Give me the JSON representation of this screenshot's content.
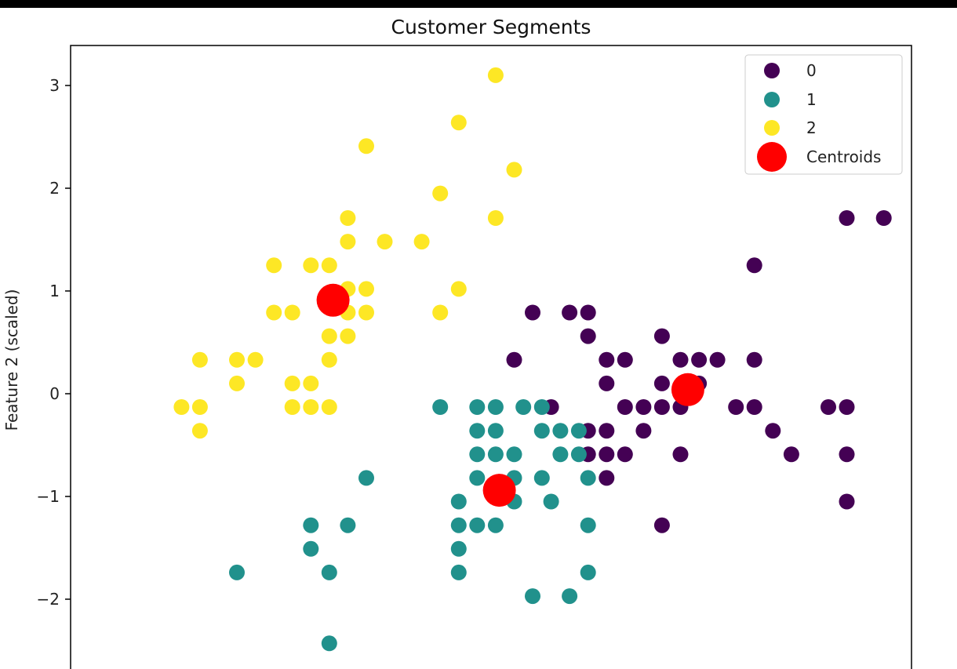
{
  "chart_data": {
    "type": "scatter",
    "title": "Customer Segments",
    "xlabel": "",
    "ylabel": "Feature 2 (scaled)",
    "ylim": [
      -2.6,
      3.35
    ],
    "xlim": [
      -1.95,
      2.6
    ],
    "yticks": [
      3,
      2,
      1,
      0,
      -1,
      -2
    ],
    "ytick_labels": [
      "3",
      "2",
      "1",
      "0",
      "−1",
      "−2"
    ],
    "grid": false,
    "legend_position": "top-right",
    "series": [
      {
        "name": "0",
        "color": "#440154",
        "points": [
          [
            0.55,
            0.79
          ],
          [
            0.75,
            0.79
          ],
          [
            0.85,
            0.79
          ],
          [
            0.85,
            0.56
          ],
          [
            0.45,
            0.33
          ],
          [
            0.95,
            0.33
          ],
          [
            1.05,
            0.33
          ],
          [
            0.95,
            0.1
          ],
          [
            1.25,
            0.56
          ],
          [
            1.35,
            0.33
          ],
          [
            1.45,
            0.33
          ],
          [
            1.55,
            0.33
          ],
          [
            1.45,
            0.1
          ],
          [
            1.25,
            0.1
          ],
          [
            1.05,
            -0.13
          ],
          [
            1.15,
            -0.13
          ],
          [
            1.25,
            -0.13
          ],
          [
            1.35,
            -0.13
          ],
          [
            1.65,
            -0.13
          ],
          [
            1.75,
            -0.13
          ],
          [
            2.15,
            -0.13
          ],
          [
            2.25,
            -0.13
          ],
          [
            0.65,
            -0.13
          ],
          [
            0.85,
            -0.36
          ],
          [
            0.95,
            -0.36
          ],
          [
            1.15,
            -0.36
          ],
          [
            1.85,
            -0.36
          ],
          [
            0.85,
            -0.59
          ],
          [
            0.95,
            -0.59
          ],
          [
            1.05,
            -0.59
          ],
          [
            1.35,
            -0.59
          ],
          [
            1.95,
            -0.59
          ],
          [
            2.25,
            -0.59
          ],
          [
            0.95,
            -0.82
          ],
          [
            1.25,
            -1.28
          ],
          [
            2.25,
            -1.05
          ],
          [
            1.75,
            0.33
          ],
          [
            1.75,
            1.25
          ],
          [
            2.25,
            1.71
          ],
          [
            2.45,
            1.71
          ]
        ]
      },
      {
        "name": "1",
        "color": "#21918c",
        "points": [
          [
            0.05,
            -0.13
          ],
          [
            0.25,
            -0.13
          ],
          [
            0.35,
            -0.13
          ],
          [
            0.5,
            -0.13
          ],
          [
            0.6,
            -0.13
          ],
          [
            0.25,
            -0.36
          ],
          [
            0.35,
            -0.36
          ],
          [
            0.6,
            -0.36
          ],
          [
            0.7,
            -0.36
          ],
          [
            0.8,
            -0.36
          ],
          [
            0.25,
            -0.59
          ],
          [
            0.35,
            -0.59
          ],
          [
            0.45,
            -0.59
          ],
          [
            0.7,
            -0.59
          ],
          [
            0.8,
            -0.59
          ],
          [
            -0.35,
            -0.82
          ],
          [
            0.25,
            -0.82
          ],
          [
            0.45,
            -0.82
          ],
          [
            0.6,
            -0.82
          ],
          [
            0.85,
            -0.82
          ],
          [
            0.15,
            -1.05
          ],
          [
            0.45,
            -1.05
          ],
          [
            0.65,
            -1.05
          ],
          [
            -0.65,
            -1.28
          ],
          [
            -0.45,
            -1.28
          ],
          [
            0.15,
            -1.28
          ],
          [
            0.25,
            -1.28
          ],
          [
            0.35,
            -1.28
          ],
          [
            0.85,
            -1.28
          ],
          [
            -0.65,
            -1.51
          ],
          [
            0.15,
            -1.51
          ],
          [
            -1.05,
            -1.74
          ],
          [
            -0.55,
            -1.74
          ],
          [
            0.15,
            -1.74
          ],
          [
            0.85,
            -1.74
          ],
          [
            0.55,
            -1.97
          ],
          [
            0.75,
            -1.97
          ],
          [
            -0.55,
            -2.43
          ]
        ]
      },
      {
        "name": "2",
        "color": "#fde725",
        "points": [
          [
            0.35,
            3.1
          ],
          [
            0.15,
            2.64
          ],
          [
            -0.35,
            2.41
          ],
          [
            0.45,
            2.18
          ],
          [
            0.05,
            1.95
          ],
          [
            0.35,
            1.71
          ],
          [
            -0.45,
            1.71
          ],
          [
            -0.45,
            1.48
          ],
          [
            -0.25,
            1.48
          ],
          [
            -0.05,
            1.48
          ],
          [
            -0.85,
            1.25
          ],
          [
            -0.65,
            1.25
          ],
          [
            -0.55,
            1.25
          ],
          [
            -0.45,
            1.02
          ],
          [
            -0.35,
            1.02
          ],
          [
            0.15,
            1.02
          ],
          [
            -0.85,
            0.79
          ],
          [
            -0.75,
            0.79
          ],
          [
            -0.45,
            0.79
          ],
          [
            -0.35,
            0.79
          ],
          [
            0.05,
            0.79
          ],
          [
            -0.55,
            0.56
          ],
          [
            -0.45,
            0.56
          ],
          [
            -1.25,
            0.33
          ],
          [
            -1.05,
            0.33
          ],
          [
            -0.95,
            0.33
          ],
          [
            -0.55,
            0.33
          ],
          [
            -1.05,
            0.1
          ],
          [
            -0.75,
            0.1
          ],
          [
            -0.65,
            0.1
          ],
          [
            -1.35,
            -0.13
          ],
          [
            -1.25,
            -0.13
          ],
          [
            -0.75,
            -0.13
          ],
          [
            -0.65,
            -0.13
          ],
          [
            -0.55,
            -0.13
          ],
          [
            -1.25,
            -0.36
          ]
        ]
      }
    ],
    "centroids": {
      "name": "Centroids",
      "color": "#ff0000",
      "points": [
        [
          -0.53,
          0.91
        ],
        [
          0.37,
          -0.94
        ],
        [
          1.39,
          0.04
        ]
      ]
    }
  }
}
